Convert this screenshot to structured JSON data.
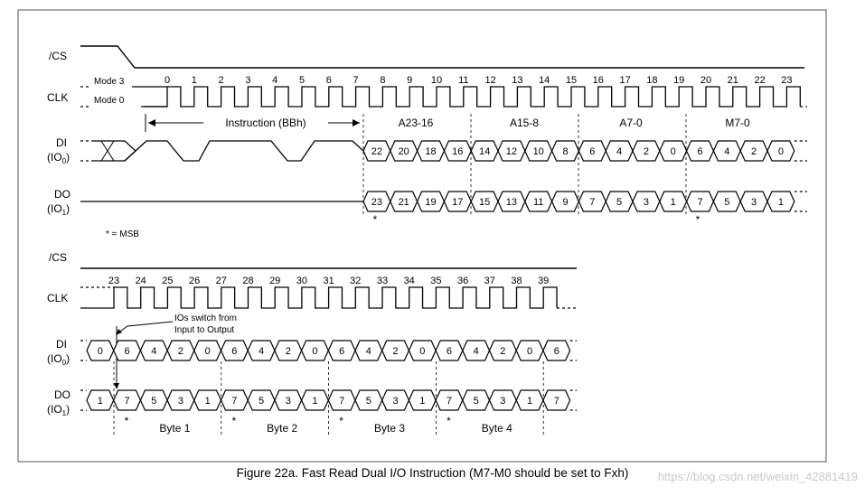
{
  "labels": {
    "cs": "/CS",
    "clk": "CLK",
    "di": "DI",
    "di_sub": "(IO",
    "do": "DO",
    "do_sub": "(IO",
    "mode3": "Mode 3",
    "mode0": "Mode 0",
    "msb_note": "* = MSB",
    "io_switch_line1": "IOs switch from",
    "io_switch_line2": "Input to Output",
    "asterisk": "*"
  },
  "sections": {
    "instruction": "Instruction (BBh)",
    "fields": [
      "A23-16",
      "A15-8",
      "A7-0",
      "M7-0"
    ],
    "bytes": [
      "Byte 1",
      "Byte 2",
      "Byte 3",
      "Byte 4"
    ]
  },
  "top_clock_numbers": [
    "0",
    "1",
    "2",
    "3",
    "4",
    "5",
    "6",
    "7",
    "8",
    "9",
    "10",
    "11",
    "12",
    "13",
    "14",
    "15",
    "16",
    "17",
    "18",
    "19",
    "20",
    "21",
    "22",
    "23"
  ],
  "bottom_clock_numbers": [
    "23",
    "24",
    "25",
    "26",
    "27",
    "28",
    "29",
    "30",
    "31",
    "32",
    "33",
    "34",
    "35",
    "36",
    "37",
    "38",
    "39"
  ],
  "top_di_bits": [
    "22",
    "20",
    "18",
    "16",
    "14",
    "12",
    "10",
    "8",
    "6",
    "4",
    "2",
    "0",
    "6",
    "4",
    "2",
    "0"
  ],
  "top_do_bits": [
    "23",
    "21",
    "19",
    "17",
    "15",
    "13",
    "11",
    "9",
    "7",
    "5",
    "3",
    "1",
    "7",
    "5",
    "3",
    "1"
  ],
  "bottom_di_bits": [
    "0",
    "6",
    "4",
    "2",
    "0",
    "6",
    "4",
    "2",
    "0",
    "6",
    "4",
    "2",
    "0",
    "6",
    "4",
    "2",
    "0",
    "6"
  ],
  "bottom_do_bits": [
    "1",
    "7",
    "5",
    "3",
    "1",
    "7",
    "5",
    "3",
    "1",
    "7",
    "5",
    "3",
    "1",
    "7",
    "5",
    "3",
    "1",
    "7"
  ],
  "caption": "Figure 22a. Fast Read Dual I/O Instruction (M7-M0 should be set to Fxh)",
  "watermark": "https://blog.csdn.net/weixin_42881419"
}
